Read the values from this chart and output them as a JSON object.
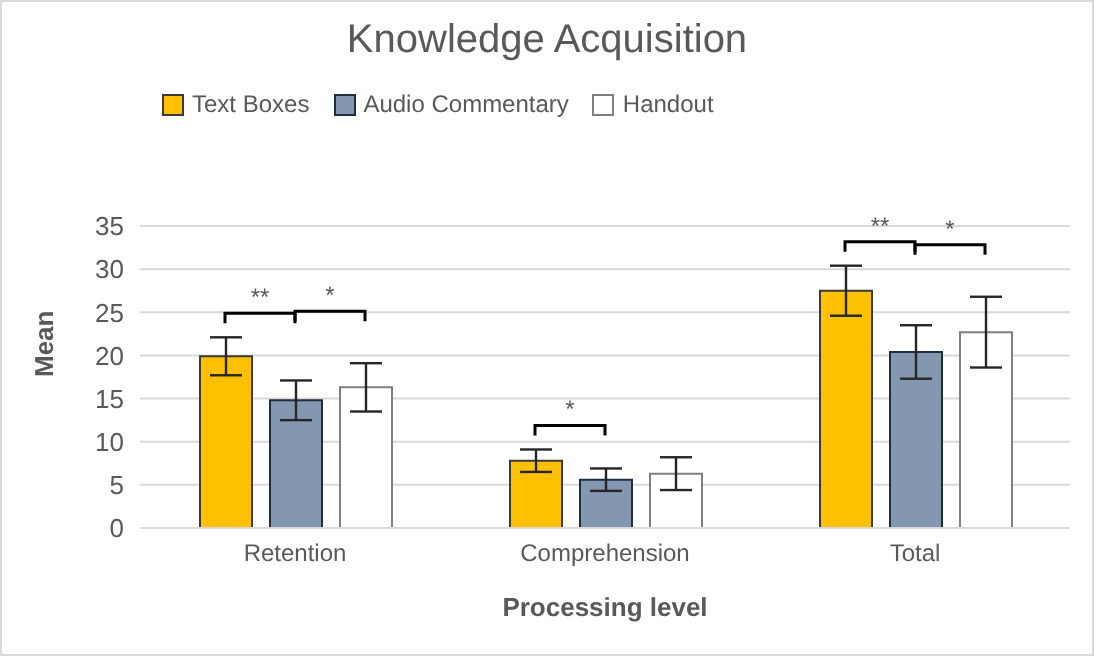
{
  "chart_data": {
    "type": "bar",
    "title": "Knowledge Acquisition",
    "xlabel": "Processing level",
    "ylabel": "Mean",
    "categories": [
      "Retention",
      "Comprehension",
      "Total"
    ],
    "series": [
      {
        "name": "Text Boxes",
        "color": "#ffc000",
        "values": [
          19.9,
          7.8,
          27.5
        ],
        "errors": [
          2.2,
          1.3,
          2.9
        ]
      },
      {
        "name": "Audio Commentary",
        "color": "#8497b0",
        "values": [
          14.8,
          5.6,
          20.4
        ],
        "errors": [
          2.3,
          1.3,
          3.1
        ]
      },
      {
        "name": "Handout",
        "color": "#ffffff",
        "values": [
          16.3,
          6.3,
          22.7
        ],
        "errors": [
          2.8,
          1.9,
          4.1
        ]
      }
    ],
    "annotations": [
      "**",
      "*",
      "*",
      "**",
      "*"
    ],
    "ylim": [
      0,
      35
    ],
    "yticks": [
      0,
      5,
      10,
      15,
      20,
      25,
      30,
      35
    ],
    "grid": "y",
    "legend": "top left"
  }
}
